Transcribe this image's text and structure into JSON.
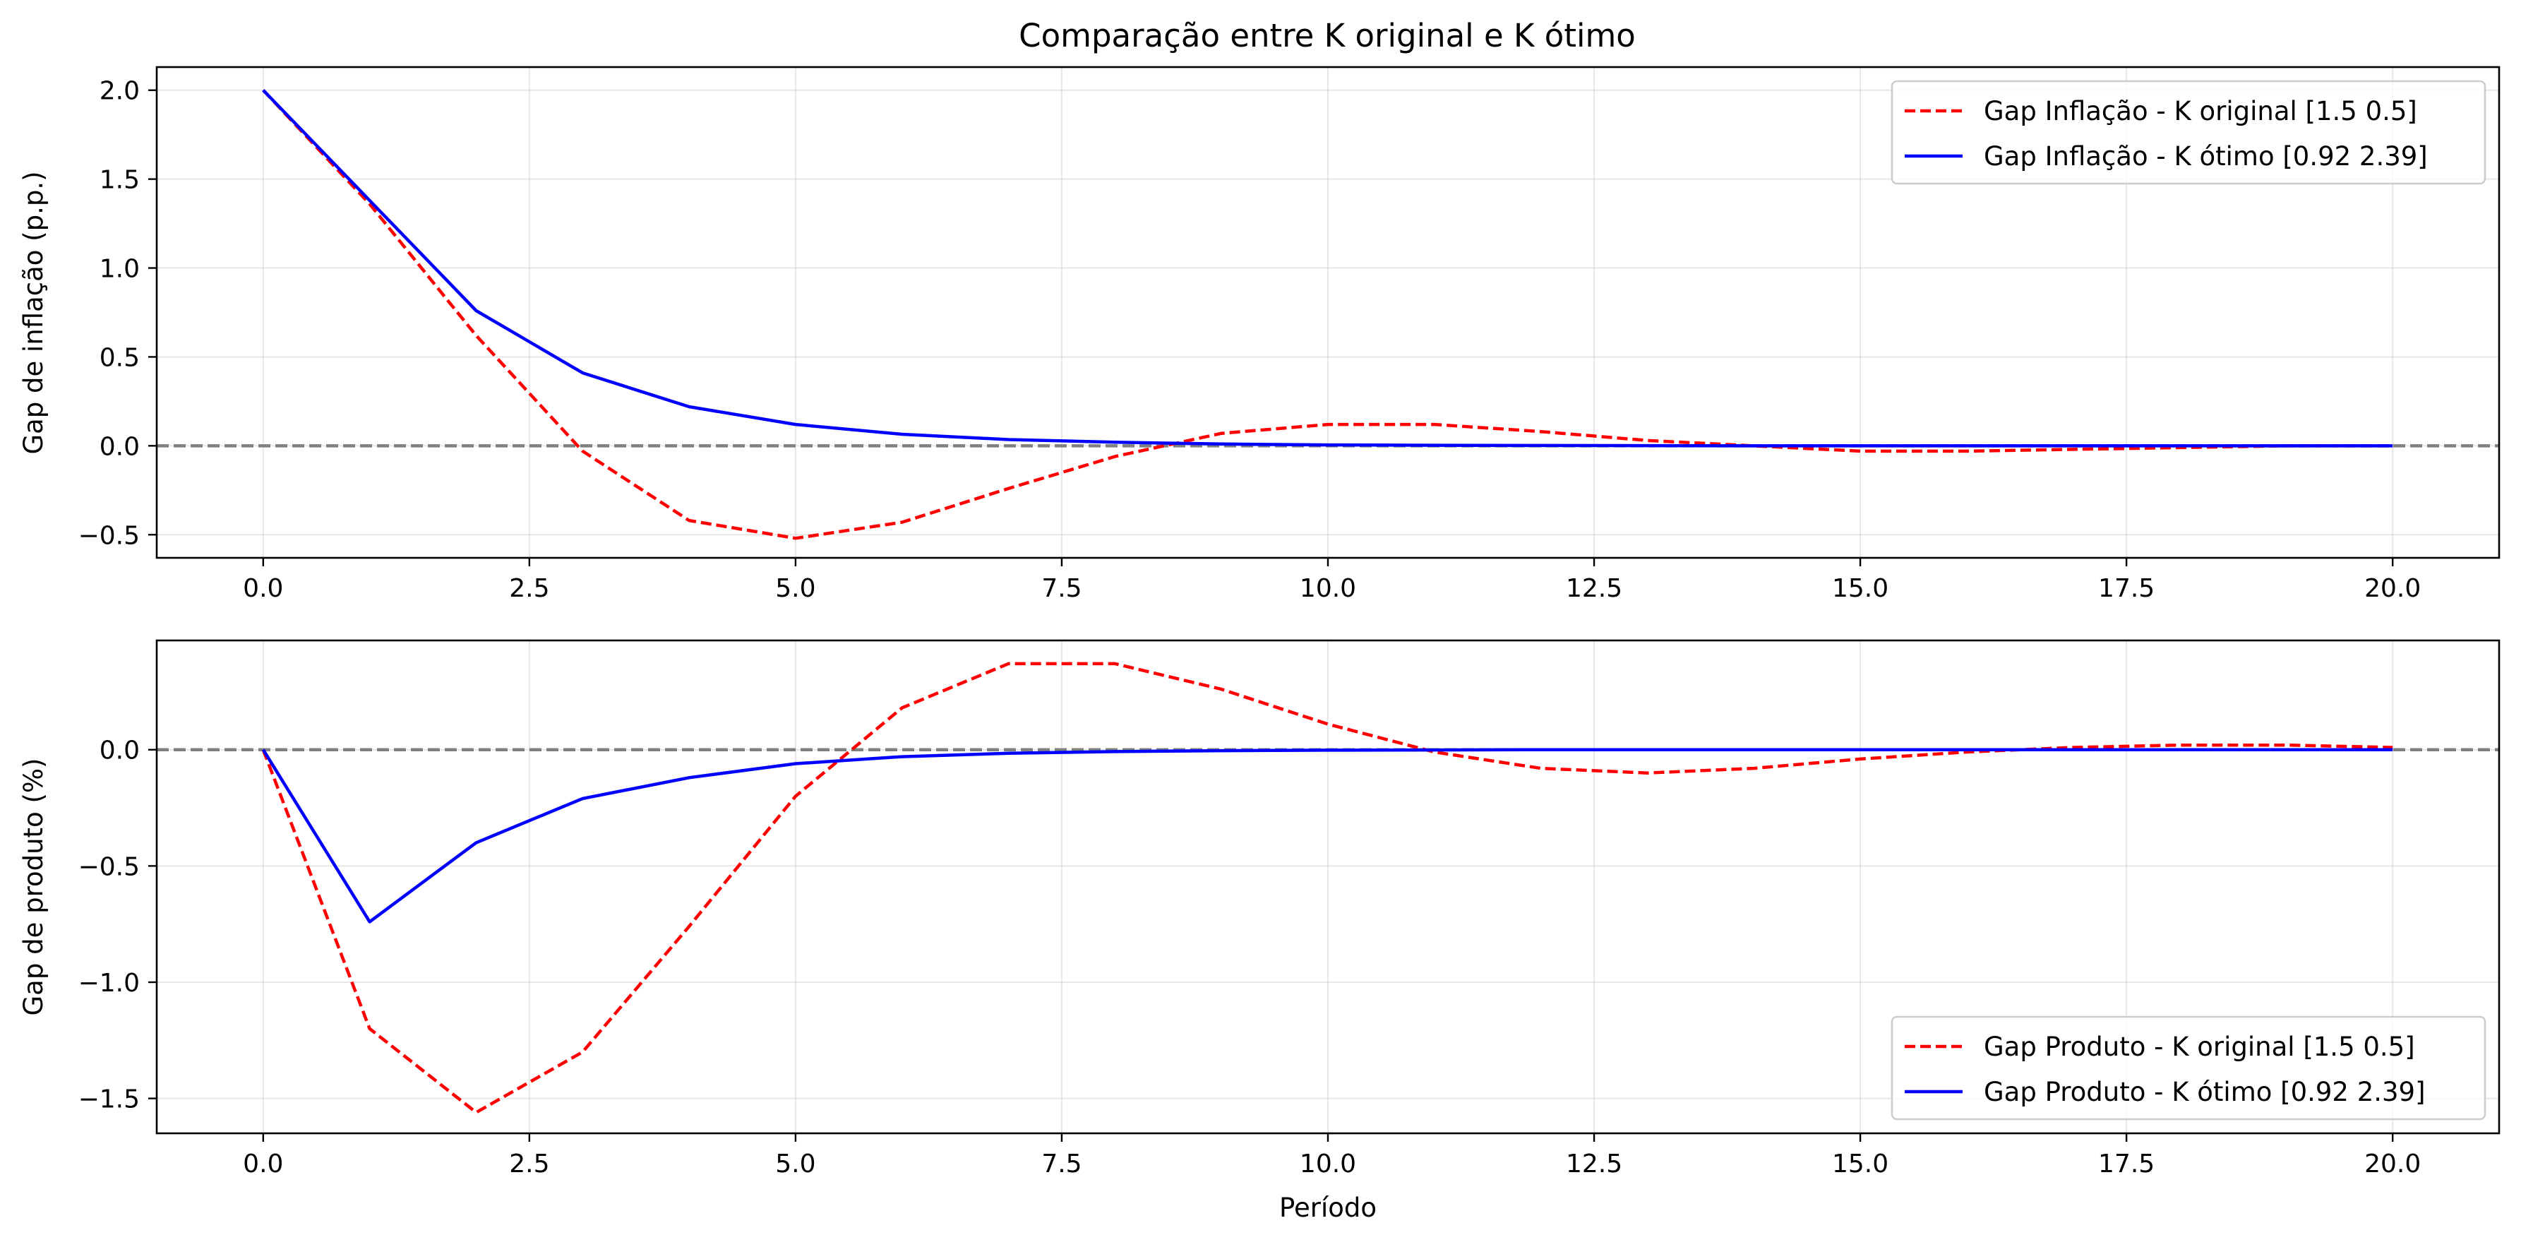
{
  "chart_data": [
    {
      "type": "line",
      "title": "Comparação entre K original e K ótimo",
      "xlabel": "",
      "ylabel": "Gap de inflação (p.p.)",
      "xlim": [
        -1,
        21
      ],
      "ylim": [
        -0.63,
        2.13
      ],
      "xticks": [
        "0.0",
        "2.5",
        "5.0",
        "7.5",
        "10.0",
        "12.5",
        "15.0",
        "17.5",
        "20.0"
      ],
      "yticks": [
        "−0.5",
        "0.0",
        "0.5",
        "1.0",
        "1.5",
        "2.0"
      ],
      "grid": true,
      "reference_line": {
        "y": 0,
        "style": "dashed",
        "color": "#808080"
      },
      "legend_position": "top-right",
      "x": [
        0,
        1,
        2,
        3,
        4,
        5,
        6,
        7,
        8,
        9,
        10,
        11,
        12,
        13,
        14,
        15,
        16,
        17,
        18,
        19,
        20
      ],
      "series": [
        {
          "name": "Gap Inflação - K original [1.5 0.5]",
          "color": "#ff0000",
          "style": "dashed",
          "values": [
            2.0,
            1.36,
            0.62,
            -0.03,
            -0.42,
            -0.52,
            -0.43,
            -0.24,
            -0.06,
            0.07,
            0.12,
            0.12,
            0.08,
            0.03,
            0.0,
            -0.03,
            -0.03,
            -0.02,
            -0.01,
            0.0,
            0.0
          ]
        },
        {
          "name": "Gap Inflação - K ótimo [0.92 2.39]",
          "color": "#0000ff",
          "style": "solid",
          "values": [
            2.0,
            1.38,
            0.76,
            0.41,
            0.22,
            0.12,
            0.065,
            0.035,
            0.02,
            0.01,
            0.005,
            0.003,
            0.002,
            0.001,
            0.0,
            0.0,
            0.0,
            0.0,
            0.0,
            0.0,
            0.0
          ]
        }
      ]
    },
    {
      "type": "line",
      "title": "",
      "xlabel": "Período",
      "ylabel": "Gap de produto (%)",
      "xlim": [
        -1,
        21
      ],
      "ylim": [
        -1.65,
        0.47
      ],
      "xticks": [
        "0.0",
        "2.5",
        "5.0",
        "7.5",
        "10.0",
        "12.5",
        "15.0",
        "17.5",
        "20.0"
      ],
      "yticks": [
        "−1.5",
        "−1.0",
        "−0.5",
        "0.0"
      ],
      "grid": true,
      "reference_line": {
        "y": 0,
        "style": "dashed",
        "color": "#808080"
      },
      "legend_position": "bottom-right",
      "x": [
        0,
        1,
        2,
        3,
        4,
        5,
        6,
        7,
        8,
        9,
        10,
        11,
        12,
        13,
        14,
        15,
        16,
        17,
        18,
        19,
        20
      ],
      "series": [
        {
          "name": "Gap Produto - K original [1.5 0.5]",
          "color": "#ff0000",
          "style": "dashed",
          "values": [
            0.0,
            -1.2,
            -1.56,
            -1.3,
            -0.76,
            -0.2,
            0.18,
            0.37,
            0.37,
            0.26,
            0.11,
            -0.01,
            -0.08,
            -0.1,
            -0.08,
            -0.04,
            -0.01,
            0.01,
            0.02,
            0.02,
            0.01
          ]
        },
        {
          "name": "Gap Produto - K ótimo [0.92 2.39]",
          "color": "#0000ff",
          "style": "solid",
          "values": [
            0.0,
            -0.74,
            -0.4,
            -0.21,
            -0.12,
            -0.06,
            -0.03,
            -0.015,
            -0.008,
            -0.004,
            -0.002,
            -0.001,
            0.0,
            0.0,
            0.0,
            0.0,
            0.0,
            0.0,
            0.0,
            0.0,
            0.0
          ]
        }
      ]
    }
  ]
}
